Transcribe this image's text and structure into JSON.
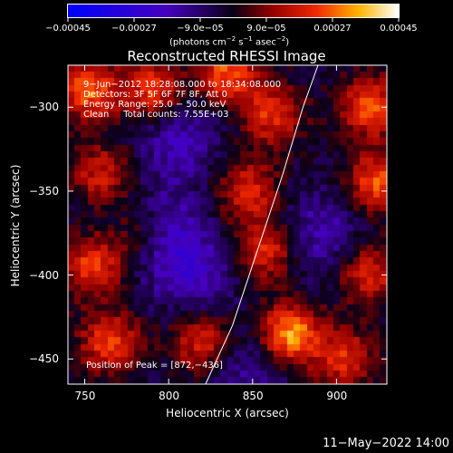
{
  "chart_data": {
    "type": "heatmap",
    "title": "Reconstructed RHESSI Image",
    "xlabel": "Heliocentric X (arcsec)",
    "ylabel": "Heliocentric Y (arcsec)",
    "xlim": [
      740,
      930
    ],
    "ylim": [
      -465,
      -275
    ],
    "x_ticks": [
      750,
      800,
      850,
      900
    ],
    "y_ticks": [
      -300,
      -350,
      -400,
      -450
    ],
    "x_tick_labels": [
      "750",
      "800",
      "850",
      "900"
    ],
    "y_tick_labels": [
      "−300",
      "−350",
      "−400",
      "−450"
    ],
    "colorbar": {
      "range": [
        -0.00045,
        0.00045
      ],
      "tick_labels": [
        "−0.00045",
        "−0.00027",
        "−9.0e−05",
        "9.0e−05",
        "0.00027",
        "0.00045"
      ],
      "unit_main": "(photons cm",
      "unit_sup1": "−2",
      "unit_mid1": " s",
      "unit_sup2": "−1",
      "unit_mid2": " asec",
      "unit_sup3": "−2",
      "unit_end": ")"
    },
    "annotations": [
      "9−Jun−2012 18:28:08.000 to 18:34:08.000",
      "Detectors: 3F 5F 6F 7F 8F, Att 0",
      "Energy Range: 25.0 − 50.0 keV",
      "Clean     Total counts: 7.55E+03"
    ],
    "peak_label": "Position of Peak = [872,−436]",
    "peak": [
      872,
      -436
    ],
    "limb_curve": [
      [
        822,
        -465
      ],
      [
        838,
        -430
      ],
      [
        853,
        -385
      ],
      [
        868,
        -340
      ],
      [
        880,
        -300
      ],
      [
        889,
        -275
      ]
    ],
    "hot_spots": [
      {
        "x": 752,
        "y": -290,
        "intensity": 0.8
      },
      {
        "x": 790,
        "y": -290,
        "intensity": 0.7
      },
      {
        "x": 835,
        "y": -280,
        "intensity": 0.75
      },
      {
        "x": 862,
        "y": -305,
        "intensity": 0.65
      },
      {
        "x": 920,
        "y": -300,
        "intensity": 0.75
      },
      {
        "x": 760,
        "y": -340,
        "intensity": 0.55
      },
      {
        "x": 848,
        "y": -350,
        "intensity": 0.6
      },
      {
        "x": 925,
        "y": -345,
        "intensity": 0.75
      },
      {
        "x": 755,
        "y": -395,
        "intensity": 0.7
      },
      {
        "x": 785,
        "y": -375,
        "intensity": 0.5
      },
      {
        "x": 858,
        "y": -385,
        "intensity": 0.65
      },
      {
        "x": 920,
        "y": -400,
        "intensity": 0.6
      },
      {
        "x": 765,
        "y": -440,
        "intensity": 0.7
      },
      {
        "x": 820,
        "y": -440,
        "intensity": 0.6
      },
      {
        "x": 872,
        "y": -436,
        "intensity": 1.0
      },
      {
        "x": 905,
        "y": -450,
        "intensity": 0.6
      }
    ],
    "cold_spots": [
      {
        "x": 805,
        "y": -320,
        "intensity": 0.55
      },
      {
        "x": 795,
        "y": -375,
        "intensity": 0.8
      },
      {
        "x": 815,
        "y": -400,
        "intensity": 0.6
      },
      {
        "x": 890,
        "y": -375,
        "intensity": 0.55
      },
      {
        "x": 850,
        "y": -455,
        "intensity": 0.5
      }
    ]
  },
  "timestamp": "11−May−2022 14:00"
}
